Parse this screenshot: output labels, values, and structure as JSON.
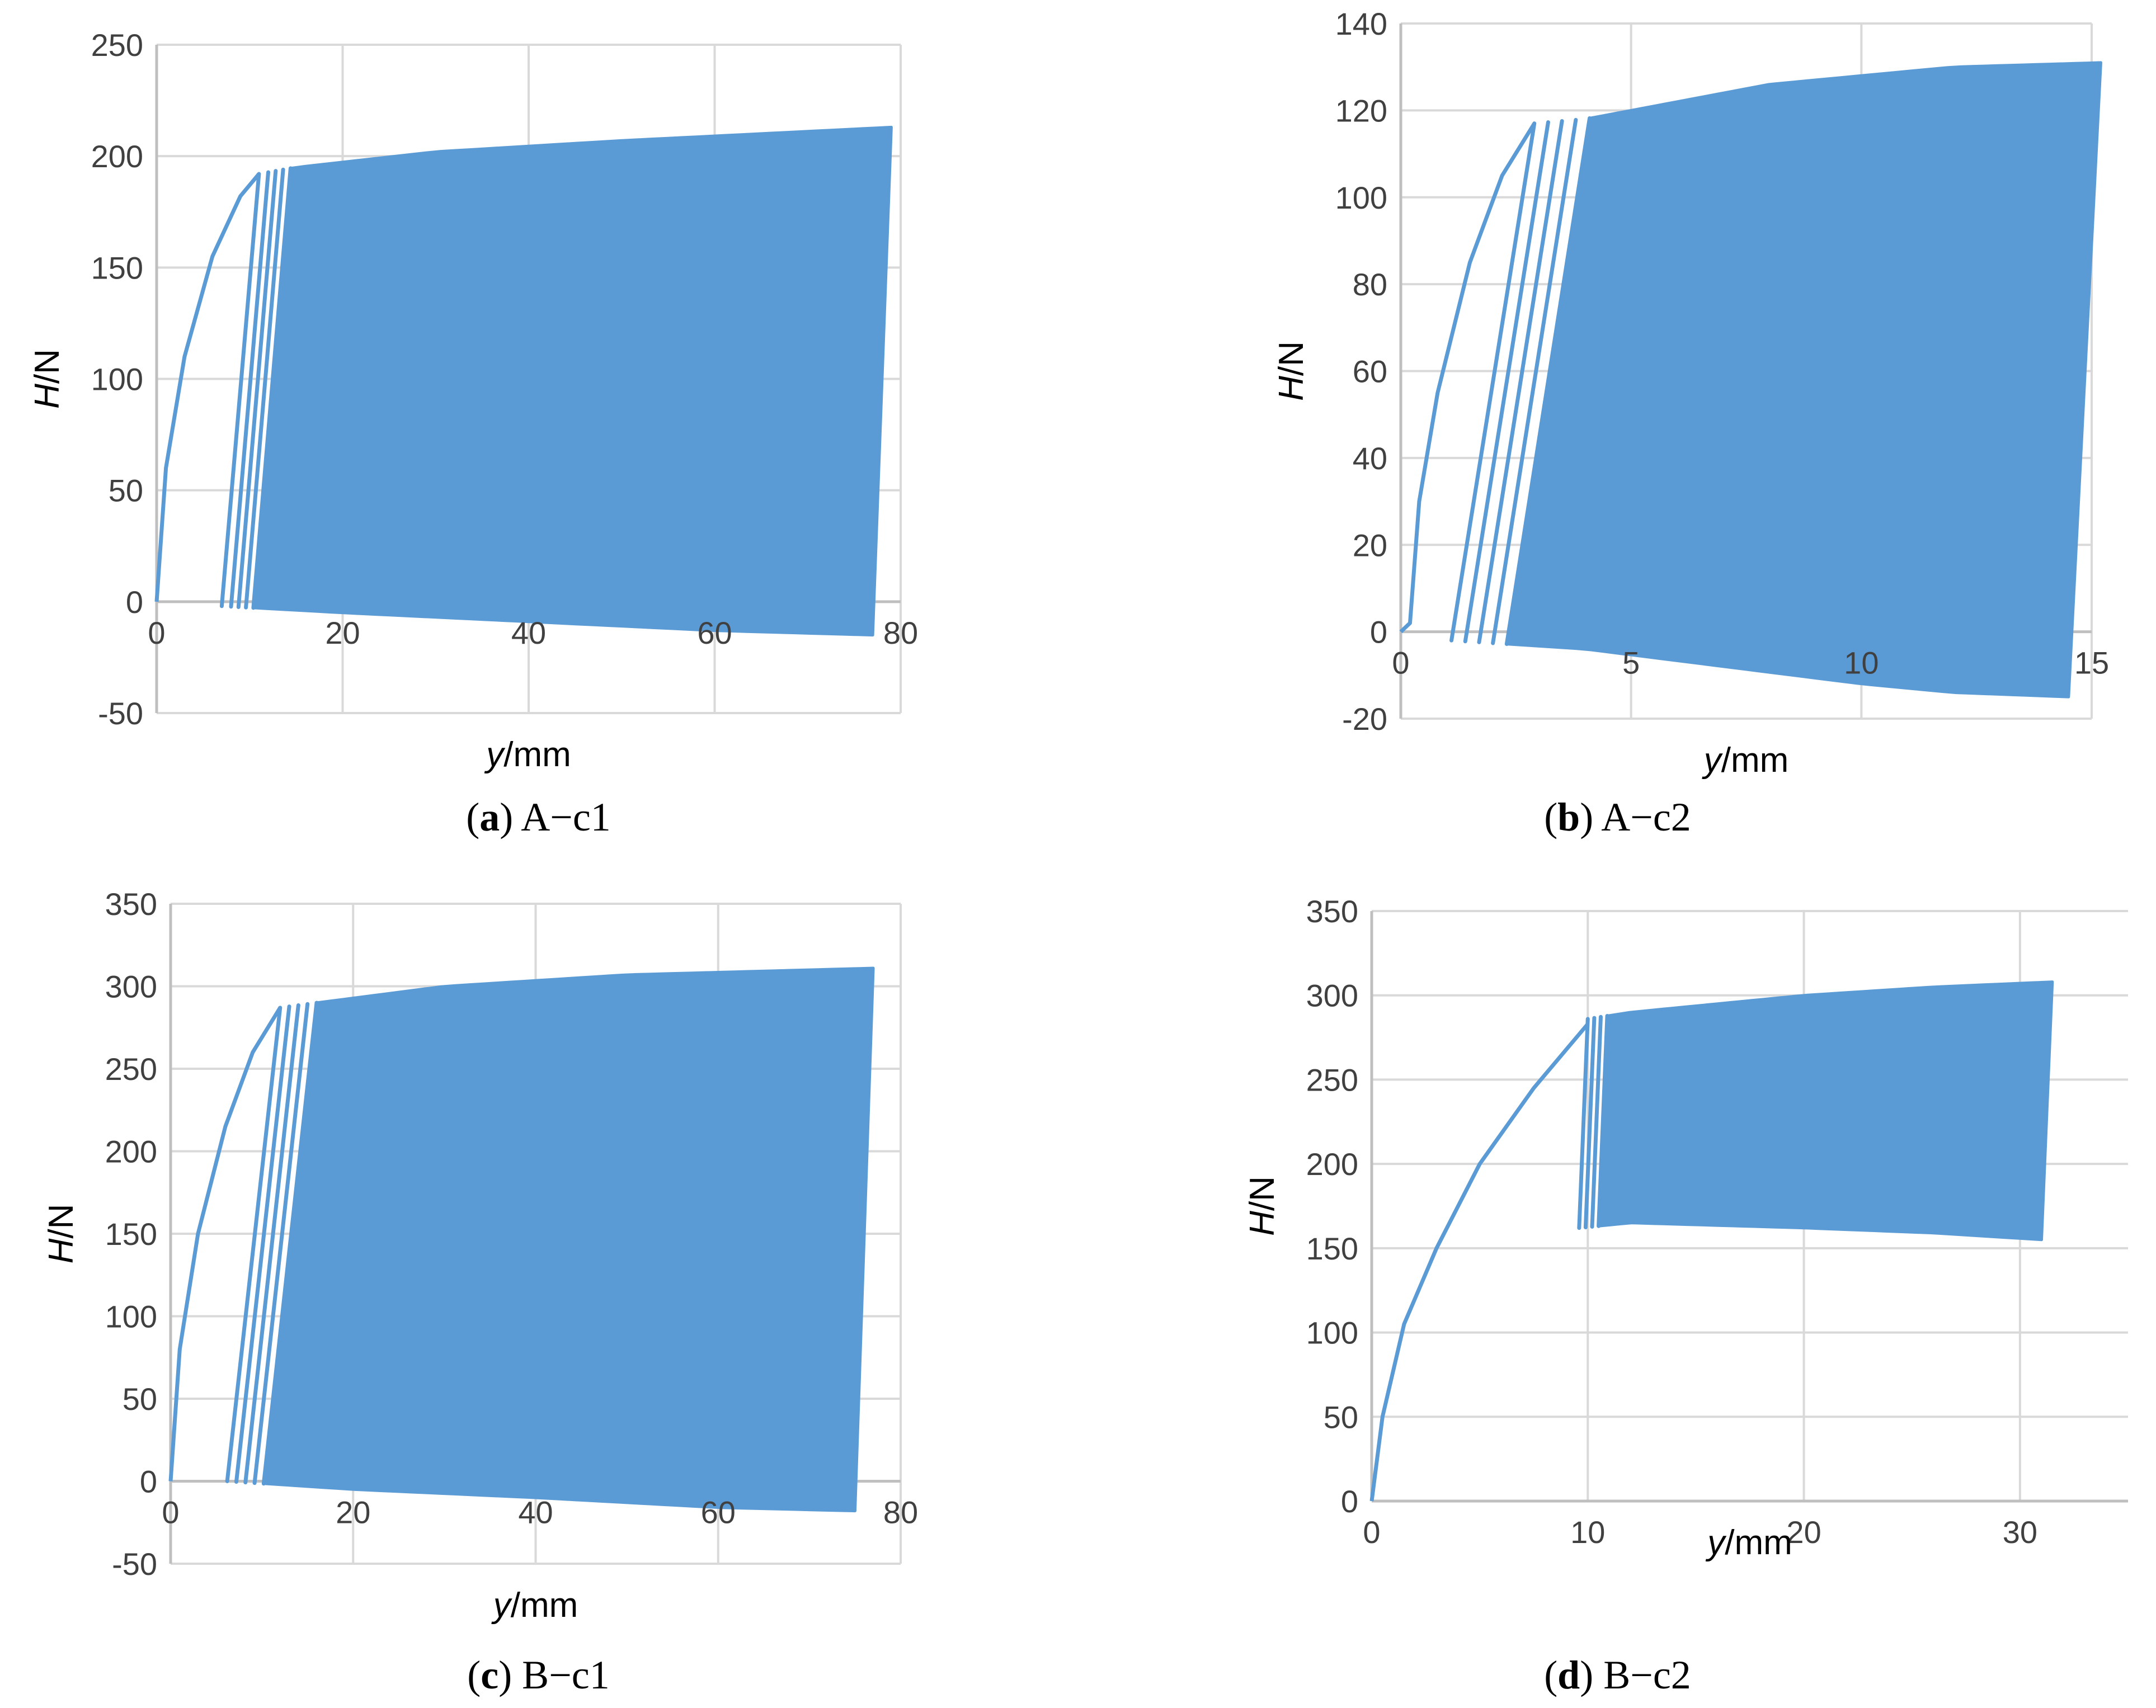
{
  "colors": {
    "series": "#5b9bd5",
    "grid": "#d9d9d9",
    "axis": "#bfbfbf",
    "tick_text": "#404040"
  },
  "chart_data": [
    {
      "panel_letter": "a",
      "caption_text": "A−c1",
      "type": "line",
      "xlabel_italic": "y",
      "xlabel_unit": "/mm",
      "ylabel_italic": "H",
      "ylabel_unit": "/N",
      "xlim": [
        0,
        80
      ],
      "ylim": [
        -50,
        250
      ],
      "xticks": [
        0,
        20,
        40,
        60,
        80
      ],
      "yticks": [
        -50,
        0,
        50,
        100,
        150,
        200,
        250
      ],
      "grid": true,
      "initial_loading_curve": [
        [
          0,
          0
        ],
        [
          1,
          60
        ],
        [
          3,
          110
        ],
        [
          6,
          155
        ],
        [
          9,
          182
        ],
        [
          11,
          192
        ]
      ],
      "hysteresis_band": {
        "start_y": 7.0,
        "end_y": 77.5,
        "upper_envelope": [
          [
            11,
            192
          ],
          [
            15,
            195
          ],
          [
            30,
            202
          ],
          [
            50,
            207
          ],
          [
            79,
            213
          ]
        ],
        "lower_envelope": [
          [
            7,
            -2
          ],
          [
            20,
            -5
          ],
          [
            40,
            -9
          ],
          [
            60,
            -13
          ],
          [
            77,
            -15
          ]
        ],
        "initial_cycles_peak_y": [
          11,
          12,
          12.8,
          13.6,
          14.4
        ]
      }
    },
    {
      "panel_letter": "b",
      "caption_text": "A−c2",
      "type": "line",
      "xlabel_italic": "y",
      "xlabel_unit": "/mm",
      "ylabel_italic": "H",
      "ylabel_unit": "/N",
      "xlim": [
        0,
        15
      ],
      "ylim": [
        -20,
        140
      ],
      "xticks": [
        0,
        5,
        10,
        15
      ],
      "yticks": [
        -20,
        0,
        20,
        40,
        60,
        80,
        100,
        120,
        140
      ],
      "grid": true,
      "initial_loading_curve": [
        [
          0,
          0
        ],
        [
          0.2,
          2
        ],
        [
          0.4,
          30
        ],
        [
          0.8,
          55
        ],
        [
          1.5,
          85
        ],
        [
          2.2,
          105
        ],
        [
          2.9,
          117
        ]
      ],
      "hysteresis_band": {
        "start_y": 1.1,
        "end_y": 15.2,
        "upper_envelope": [
          [
            2.9,
            117
          ],
          [
            4,
            118
          ],
          [
            6,
            122
          ],
          [
            8,
            126
          ],
          [
            10,
            128
          ],
          [
            12,
            130
          ],
          [
            15.2,
            131
          ]
        ],
        "lower_envelope": [
          [
            1.1,
            -2
          ],
          [
            4,
            -4
          ],
          [
            7,
            -8
          ],
          [
            10,
            -12
          ],
          [
            12,
            -14
          ],
          [
            14.5,
            -15
          ]
        ],
        "initial_cycles_peak_y": [
          2.9,
          3.2,
          3.5,
          3.8,
          4.1
        ]
      }
    },
    {
      "panel_letter": "c",
      "caption_text": "B−c1",
      "type": "line",
      "xlabel_italic": "y",
      "xlabel_unit": "/mm",
      "ylabel_italic": "H",
      "ylabel_unit": "/N",
      "xlim": [
        0,
        80
      ],
      "ylim": [
        -50,
        350
      ],
      "xticks": [
        0,
        20,
        40,
        60,
        80
      ],
      "yticks": [
        -50,
        0,
        50,
        100,
        150,
        200,
        250,
        300,
        350
      ],
      "grid": true,
      "initial_loading_curve": [
        [
          0,
          0
        ],
        [
          1,
          80
        ],
        [
          3,
          150
        ],
        [
          6,
          215
        ],
        [
          9,
          260
        ],
        [
          12,
          287
        ]
      ],
      "hysteresis_band": {
        "start_y": 6.2,
        "end_y": 77.0,
        "upper_envelope": [
          [
            12,
            287
          ],
          [
            16,
            290
          ],
          [
            30,
            300
          ],
          [
            50,
            307
          ],
          [
            77,
            311
          ]
        ],
        "lower_envelope": [
          [
            6.2,
            0
          ],
          [
            20,
            -5
          ],
          [
            40,
            -10
          ],
          [
            60,
            -16
          ],
          [
            75,
            -18
          ]
        ],
        "initial_cycles_peak_y": [
          12,
          13,
          14,
          15,
          16
        ]
      }
    },
    {
      "panel_letter": "d",
      "caption_text": "B−c2",
      "type": "line",
      "xlabel_italic": "y",
      "xlabel_unit": "/mm",
      "ylabel_italic": "H",
      "ylabel_unit": "/N",
      "xlim": [
        0,
        35
      ],
      "ylim": [
        0,
        350
      ],
      "xticks": [
        0,
        10,
        20,
        30
      ],
      "yticks": [
        0,
        50,
        100,
        150,
        200,
        250,
        300,
        350
      ],
      "grid": true,
      "initial_loading_curve": [
        [
          0,
          0
        ],
        [
          0.5,
          50
        ],
        [
          1.5,
          105
        ],
        [
          3,
          150
        ],
        [
          5,
          200
        ],
        [
          7.5,
          245
        ],
        [
          10,
          283
        ]
      ],
      "hysteresis_band": {
        "start_y": 9.5,
        "end_y": 31.5,
        "upper_envelope": [
          [
            10,
            286
          ],
          [
            12,
            290
          ],
          [
            20,
            300
          ],
          [
            26,
            305
          ],
          [
            31.5,
            308
          ]
        ],
        "lower_envelope": [
          [
            9.6,
            162
          ],
          [
            12,
            165
          ],
          [
            20,
            162
          ],
          [
            26,
            159
          ],
          [
            31,
            155
          ]
        ],
        "initial_cycles_peak_y": [
          10,
          10.3,
          10.6,
          10.9
        ]
      }
    }
  ]
}
